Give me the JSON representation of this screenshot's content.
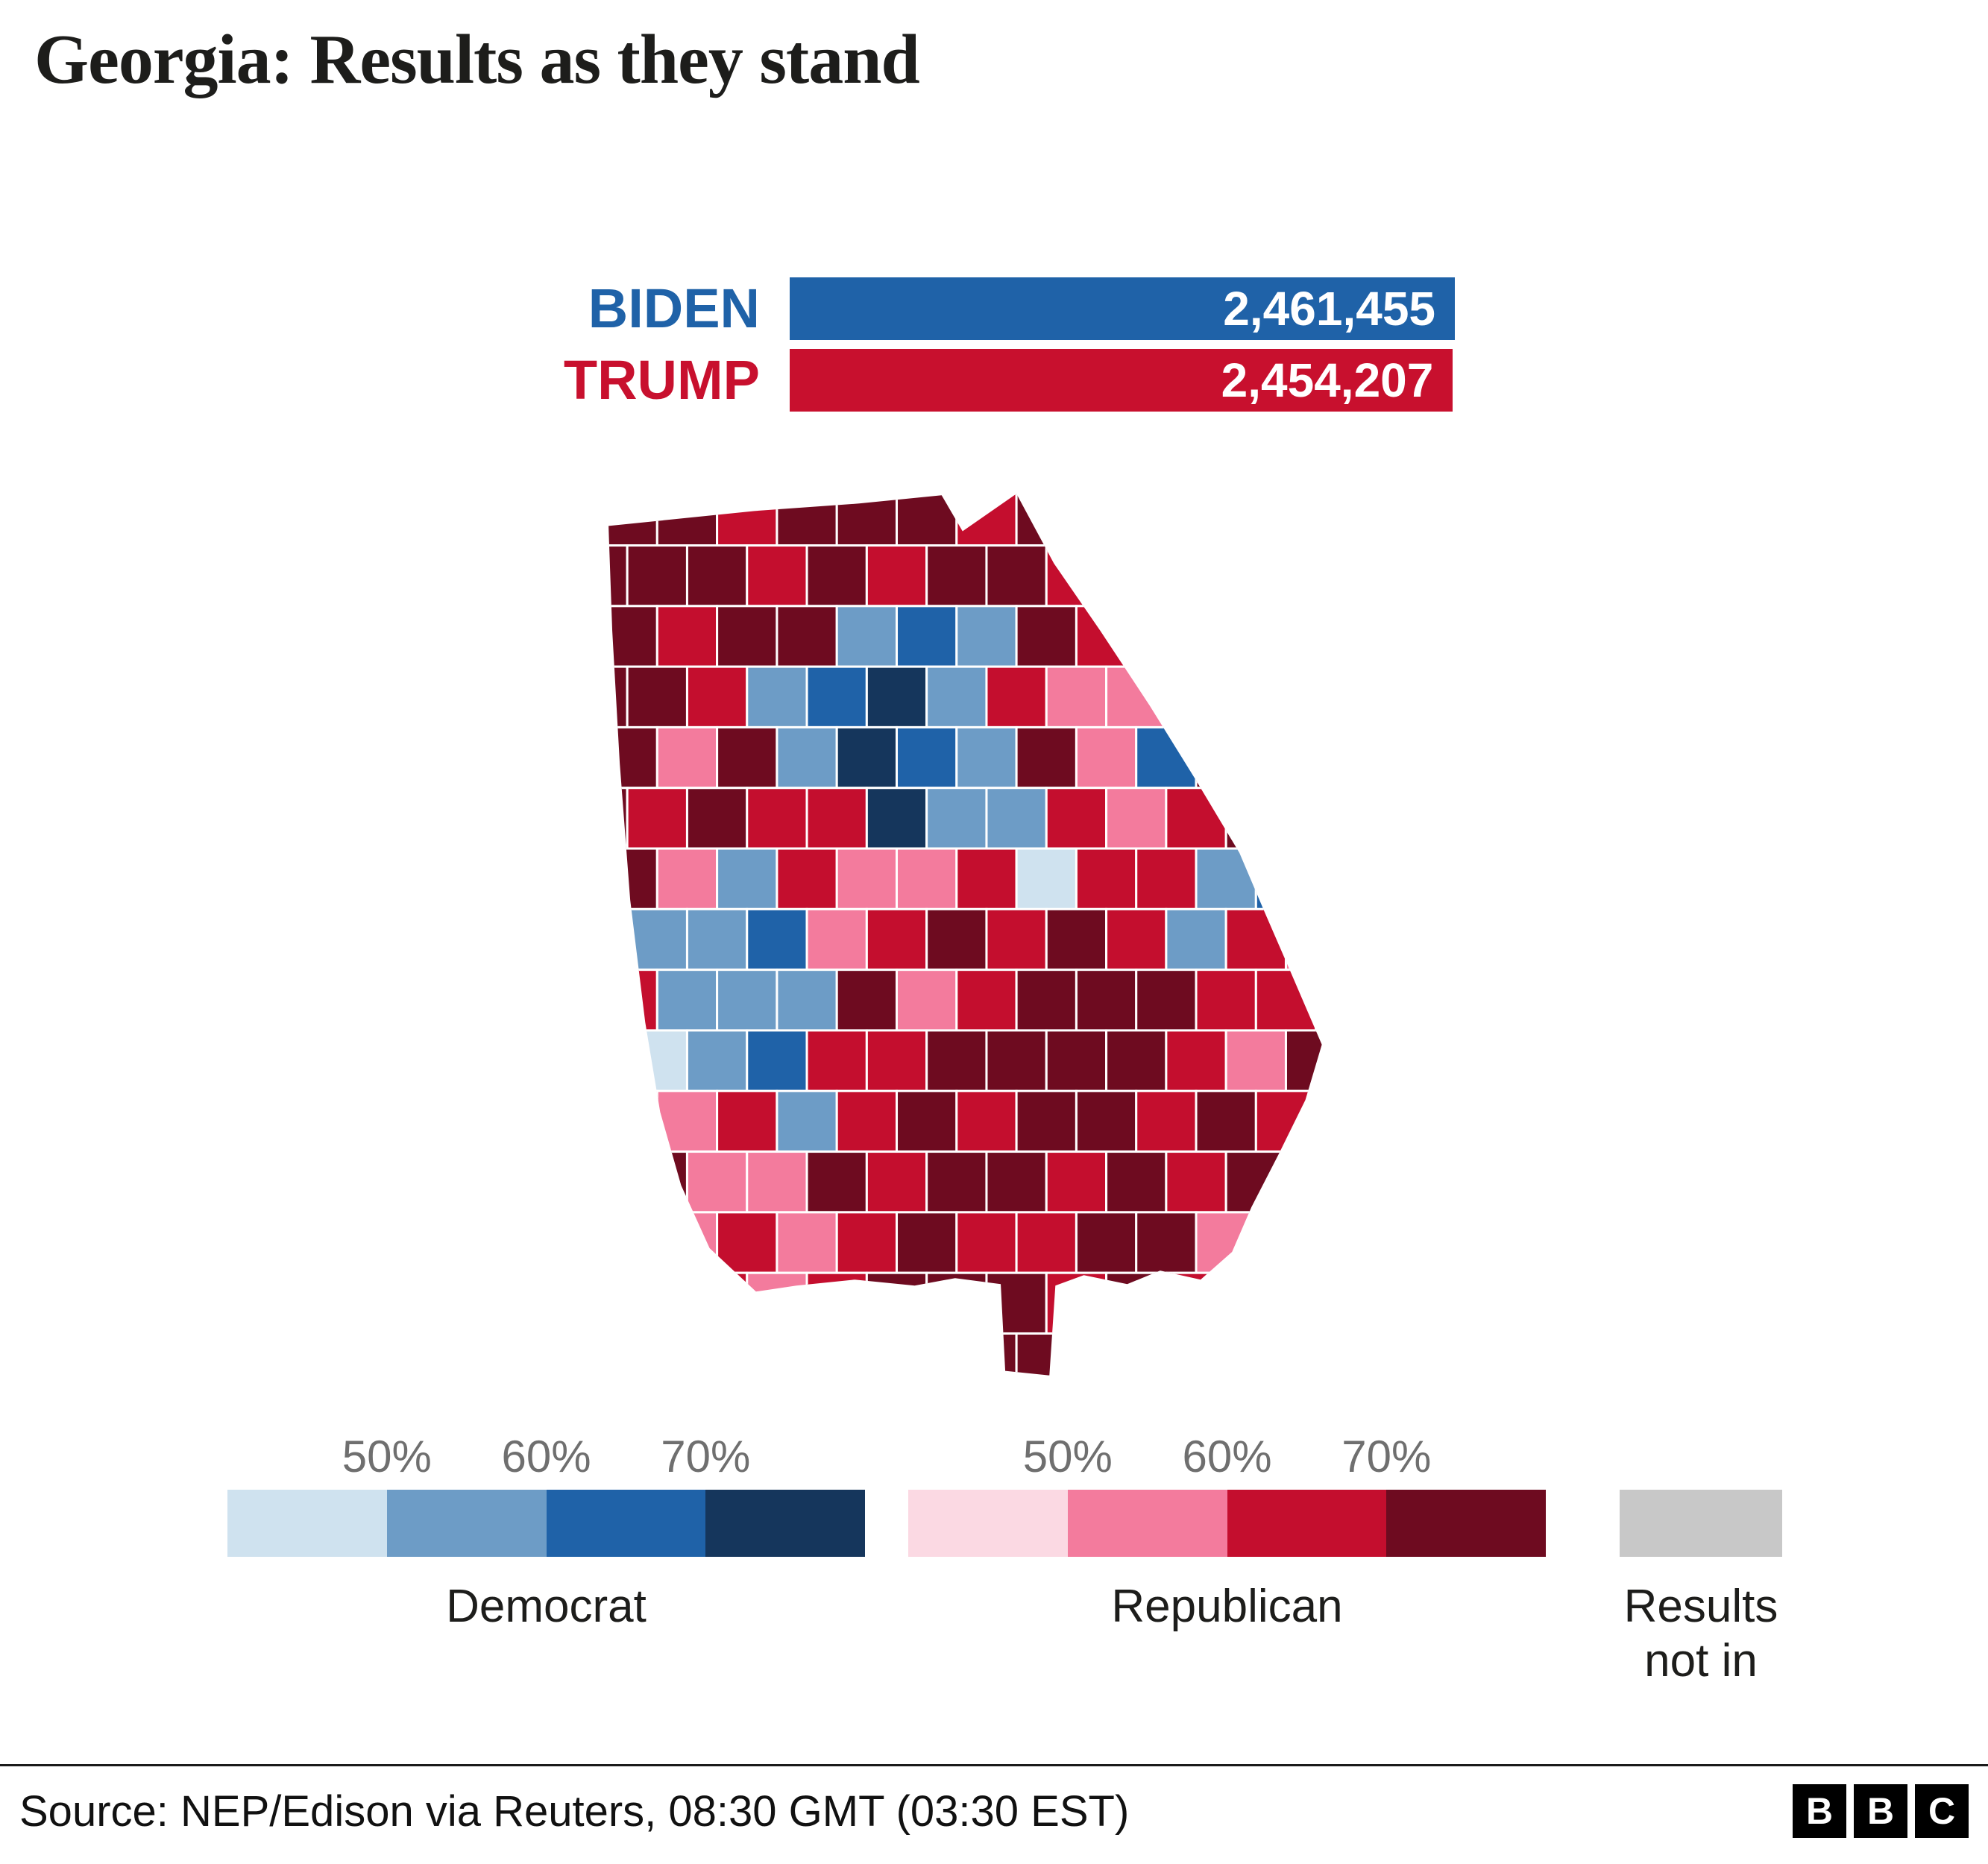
{
  "title": "Georgia: Results as they stand",
  "colors": {
    "dem": [
      "#cfe2ef",
      "#6d9cc6",
      "#1f62a8",
      "#15365c"
    ],
    "rep": [
      "#fbd9e3",
      "#f37b9d",
      "#c40e2e",
      "#6e0b20"
    ],
    "no_result": "#c8c8c8",
    "dem_accent": "#1f62a8",
    "rep_accent": "#c8102e"
  },
  "chart_data": [
    {
      "type": "bar",
      "title": "Georgia: Results as they stand",
      "categories": [
        "BIDEN",
        "TRUMP"
      ],
      "values": [
        2461455,
        2454207
      ],
      "value_labels": [
        "2,461,455",
        "2,454,207"
      ],
      "colors": [
        "#1f62a8",
        "#c8102e"
      ],
      "orientation": "horizontal",
      "value_labels_position": "inside-right"
    },
    {
      "type": "heatmap",
      "subtype": "choropleth-approximation",
      "title": "Georgia counties coloured by leading party and vote share",
      "legend_bands": {
        "democrat": [
          "<50%",
          "50-60%",
          "60-70%",
          ">70%"
        ],
        "republican": [
          "<50%",
          "50-60%",
          "60-70%",
          ">70%"
        ],
        "other": "Results not in"
      }
    }
  ],
  "bars": [
    {
      "label": "BIDEN",
      "value_label": "2,461,455"
    },
    {
      "label": "TRUMP",
      "value_label": "2,454,207"
    }
  ],
  "legend": {
    "ticks": [
      "50%",
      "60%",
      "70%"
    ],
    "dem_label": "Democrat",
    "rep_label": "Republican",
    "no_result_label": "Results not in"
  },
  "map_grid": {
    "tokens": {
      "d1": "Democrat <50%",
      "d2": "Democrat 50-60%",
      "d3": "Democrat 60-70%",
      "d4": "Democrat >70%",
      "r1": "Republican <50%",
      "r2": "Republican 50-60%",
      "r3": "Republican 60-70%",
      "r4": "Republican >70%",
      "g": "Results not in"
    },
    "rows": [
      "r4 r4 r3 r4 r4 r4 r3 r4 r4 r4 r4 r4 r4 r4",
      "r4 r4 r4 r3 r4 r3 r4 r4 r3 r4 r4 r4 r4 r4",
      "r4 r3 r4 r4 d2 d3 d2 r4 r3 r2 r4 r4 r4 r4",
      "r4 r4 r3 d2 d3 d4 d2 r3 r2 r2 r4 r3 r4 r4",
      "r4 r2 r4 d2 d4 d3 d2 r4 r2 d3 r4 d2 r3 r4",
      "r4 r3 r4 r3 r3 d4 d2 d2 r3 r2 r3 r4 r2 r4",
      "r4 r2 d2 r3 r2 r2 r3 d1 r3 r3 d2 d3 d2 r4",
      "r4 d2 d2 d3 r2 r3 r4 r3 r4 r3 d2 r3 r2 r4",
      "r3 d2 d2 d2 r4 r2 r3 r4 r4 r4 r3 r3 r4 r4",
      "r4 d1 d2 d3 r3 r3 r4 r4 r4 r4 r3 r2 r4 r4",
      "r2 r2 r3 d2 r3 r4 r3 r4 r4 r3 r4 r3 r4 r4",
      "r2 r4 r2 r2 r4 r3 r4 r4 r3 r4 r3 r4 r4 r4",
      "r3 r2 r3 r2 r3 r4 r3 r3 r4 r4 r2 r3 r4 r4",
      "r2 r3 r3 r2 r3 r4 r4 r4 r3 r4 r3 r4 r4 r4",
      "r3 r2 r3 r3 r4 r4 r4 r4 r4 r4 r4 r4 r4 r4"
    ]
  },
  "footer": {
    "source": "Source: NEP/Edison via Reuters, 08:30 GMT (03:30 EST)",
    "logo": [
      "B",
      "B",
      "C"
    ]
  }
}
